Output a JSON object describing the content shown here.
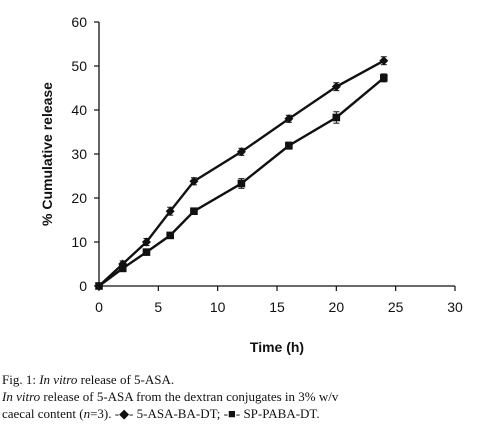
{
  "chart_data": {
    "type": "line",
    "xlabel": "Time (h)",
    "ylabel": "% Cumulative release",
    "xlim": [
      0,
      30
    ],
    "ylim": [
      0,
      60
    ],
    "xticks": [
      0,
      5,
      10,
      15,
      20,
      25,
      30
    ],
    "yticks": [
      0,
      10,
      20,
      30,
      40,
      50,
      60
    ],
    "grid": false,
    "series": [
      {
        "name": "5-ASA-BA-DT",
        "marker": "diamond",
        "x": [
          0,
          2,
          4,
          6,
          8,
          12,
          16,
          20,
          24
        ],
        "y": [
          0,
          5,
          10,
          17,
          23.8,
          30.5,
          38,
          45.3,
          51.2
        ],
        "error": [
          0,
          0.7,
          0.8,
          0.9,
          0.8,
          0.8,
          0.8,
          0.9,
          0.9
        ]
      },
      {
        "name": "SP-PABA-DT",
        "marker": "square",
        "x": [
          0,
          2,
          4,
          6,
          8,
          12,
          16,
          20,
          24
        ],
        "y": [
          0,
          4,
          7.7,
          11.5,
          17,
          23.3,
          31.9,
          38.3,
          47.3
        ],
        "error": [
          0,
          0.5,
          0.5,
          0.5,
          0.5,
          1.1,
          0.8,
          1.3,
          0.9
        ]
      }
    ]
  },
  "caption": {
    "fig_label": "Fig. 1: ",
    "fig_italic": "In vitro",
    "fig_rest": " release of 5-ASA.",
    "line2_italic": "In vitro",
    "line2_rest": " release of 5-ASA from the dextran conjugates in 3% w/v",
    "line3_start": "caecal content (",
    "line3_n": "n",
    "line3_after_n": "=3). ",
    "legend1_symbol": "-◆-",
    "legend1_name": " 5-ASA-BA-DT; ",
    "legend2_symbol": "-■-",
    "legend2_name": " SP-PABA-DT."
  }
}
